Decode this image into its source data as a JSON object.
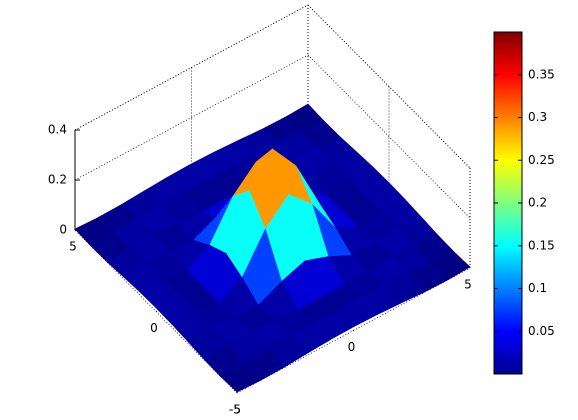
{
  "chart_data": {
    "type": "surface",
    "x": [
      -5,
      -4,
      -3,
      -2,
      -1,
      0,
      1,
      2,
      3,
      4,
      5
    ],
    "y": [
      -5,
      -4,
      -3,
      -2,
      -1,
      0,
      1,
      2,
      3,
      4,
      5
    ],
    "z": [
      [
        0.004,
        0,
        0.002,
        0.008,
        0.013,
        0.015,
        0.013,
        0.008,
        0.002,
        0,
        0.004
      ],
      [
        0,
        0.004,
        0.015,
        0.019,
        0.016,
        0.014,
        0.016,
        0.019,
        0.015,
        0.004,
        0
      ],
      [
        0.002,
        0.015,
        0.018,
        0.006,
        0,
        0.001,
        0,
        0.006,
        0.018,
        0.015,
        0.002
      ],
      [
        0.008,
        0.019,
        0.006,
        0.005,
        0.05,
        0.083,
        0.05,
        0.005,
        0.006,
        0.019,
        0.008
      ],
      [
        0.013,
        0.016,
        0,
        0.05,
        0.195,
        0.283,
        0.195,
        0.05,
        0,
        0.016,
        0.013
      ],
      [
        0.015,
        0.014,
        0.001,
        0.083,
        0.283,
        0.4,
        0.283,
        0.083,
        0.001,
        0.014,
        0.015
      ],
      [
        0.013,
        0.016,
        0,
        0.05,
        0.195,
        0.283,
        0.195,
        0.05,
        0,
        0.016,
        0.013
      ],
      [
        0.008,
        0.019,
        0.006,
        0.005,
        0.05,
        0.083,
        0.05,
        0.005,
        0.006,
        0.019,
        0.008
      ],
      [
        0.002,
        0.015,
        0.018,
        0.006,
        0,
        0.001,
        0,
        0.006,
        0.018,
        0.015,
        0.002
      ],
      [
        0,
        0.004,
        0.015,
        0.019,
        0.016,
        0.014,
        0.016,
        0.019,
        0.015,
        0.004,
        0
      ],
      [
        0.004,
        0,
        0.002,
        0.008,
        0.013,
        0.015,
        0.013,
        0.008,
        0.002,
        0,
        0.004
      ]
    ],
    "xlim": [
      -5,
      5
    ],
    "ylim": [
      -5,
      5
    ],
    "zlim": [
      0,
      0.4
    ],
    "xticks": [
      -5,
      0,
      5
    ],
    "yticks": [
      -5,
      0,
      5
    ],
    "zticks": [
      0,
      0.2,
      0.4
    ],
    "grid": true,
    "colormap": "jet",
    "clim": [
      0,
      0.4
    ],
    "colorbar_ticks": [
      0.05,
      0.1,
      0.15,
      0.2,
      0.25,
      0.3,
      0.35
    ]
  }
}
